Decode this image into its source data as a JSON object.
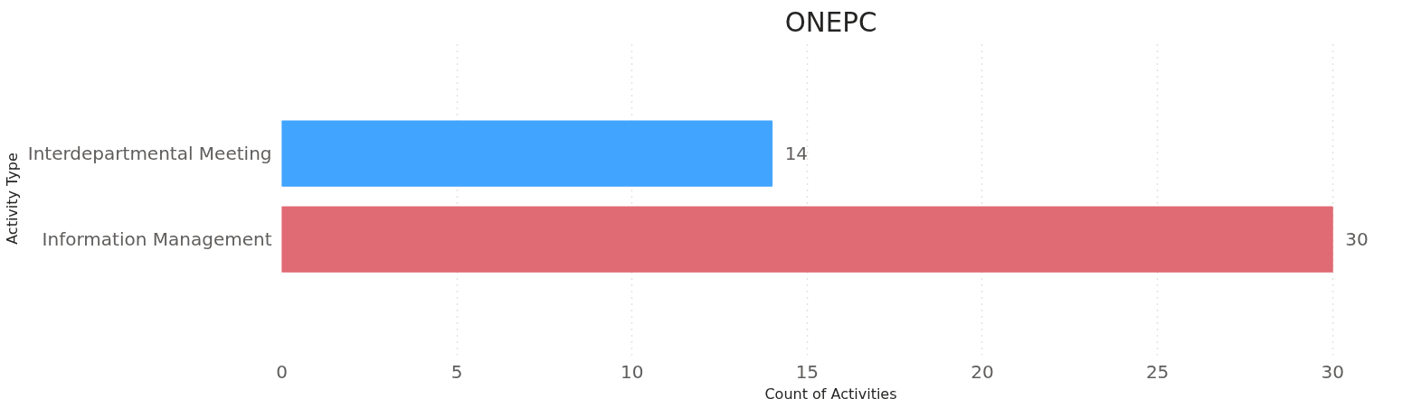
{
  "chart_data": {
    "type": "bar",
    "orientation": "horizontal",
    "title": "ONEPC",
    "xlabel": "Count of Activities",
    "ylabel": "Activity Type",
    "categories": [
      "Interdepartmental Meeting",
      "Information Management"
    ],
    "values": [
      14,
      30
    ],
    "colors": [
      "#41a4ff",
      "#e06b74"
    ],
    "xlim": [
      0,
      30
    ],
    "xticks": [
      0,
      5,
      10,
      15,
      20,
      25,
      30
    ],
    "grid": "x",
    "data_labels": true
  }
}
